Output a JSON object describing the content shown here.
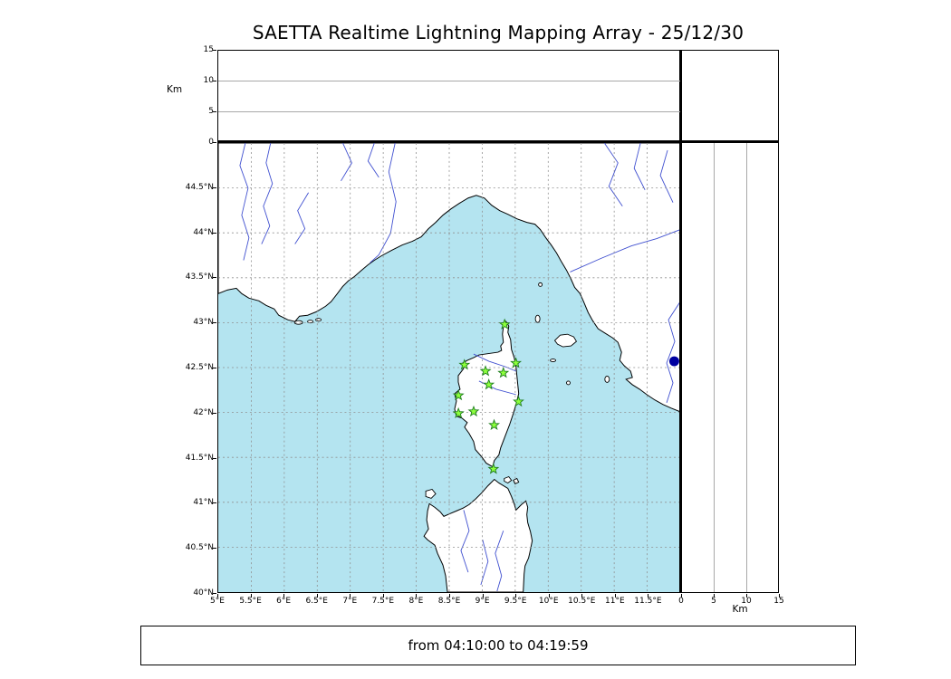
{
  "title": "SAETTA Realtime Lightning Mapping Array - 25/12/30",
  "footer": "from 04:10:00 to 04:19:59",
  "colors": {
    "sea": "#b4e4f0",
    "land": "#ffffff",
    "coast": "#000000",
    "river": "#4050d0",
    "grid": "#909090",
    "station": "#8dff3c",
    "station_edge": "#1e7d1e",
    "dot": "#0000a0"
  },
  "chart_data": {
    "type": "scatter",
    "subtype": "geographic lightning-mapping-array display (map with altitude side panels)",
    "title": "SAETTA Realtime Lightning Mapping Array - 25/12/30",
    "caption": "from 04:10:00 to 04:19:59",
    "lon_axis": {
      "min": 5,
      "max": 12,
      "tick_step": 0.5,
      "tick_labels": [
        "5°E",
        "5.5°E",
        "6°E",
        "6.5°E",
        "7°E",
        "7.5°E",
        "8°E",
        "8.5°E",
        "9°E",
        "9.5°E",
        "10°E",
        "10.5°E",
        "11°E",
        "11.5°E"
      ]
    },
    "lat_axis": {
      "min": 40,
      "max": 45,
      "tick_step": 0.5,
      "tick_labels": [
        "40°N",
        "40.5°N",
        "41°N",
        "41.5°N",
        "42°N",
        "42.5°N",
        "43°N",
        "43.5°N",
        "44°N",
        "44.5°N"
      ]
    },
    "altitude_axis": {
      "label": "Km",
      "min": 0,
      "max": 15,
      "ticks": [
        0,
        5,
        10,
        15
      ],
      "tick_labels": [
        "0",
        "5",
        "10",
        "15"
      ]
    },
    "grid": {
      "enabled": true,
      "style": "dashed"
    },
    "stations": [
      {
        "lon": 9.34,
        "lat": 42.98
      },
      {
        "lon": 8.73,
        "lat": 42.53
      },
      {
        "lon": 9.05,
        "lat": 42.46
      },
      {
        "lon": 9.32,
        "lat": 42.44
      },
      {
        "lon": 9.51,
        "lat": 42.55
      },
      {
        "lon": 9.1,
        "lat": 42.31
      },
      {
        "lon": 8.64,
        "lat": 42.19
      },
      {
        "lon": 9.55,
        "lat": 42.12
      },
      {
        "lon": 8.64,
        "lat": 41.99
      },
      {
        "lon": 8.87,
        "lat": 42.01
      },
      {
        "lon": 9.18,
        "lat": 41.86
      },
      {
        "lon": 9.17,
        "lat": 41.37
      }
    ],
    "stations_marker": "green star",
    "markers": [
      {
        "shape": "filled-circle",
        "color": "#0000a0",
        "lon": 11.91,
        "lat": 42.57
      }
    ],
    "lightning_sources": []
  }
}
